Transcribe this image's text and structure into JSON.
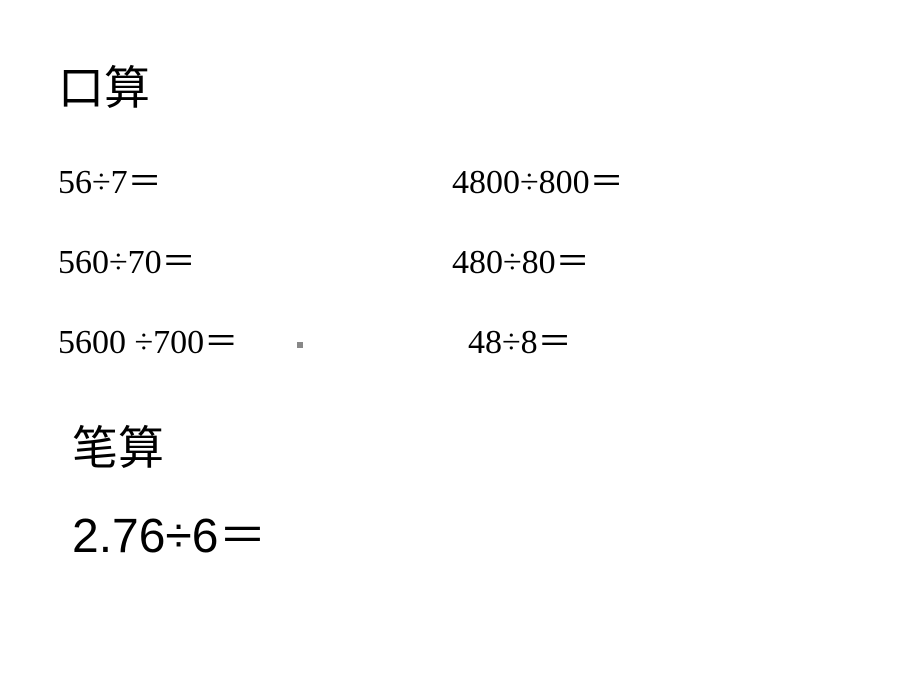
{
  "title1": "口算",
  "left": {
    "r1": "56÷7＝",
    "r2": "560÷70＝",
    "r3": "5600 ÷700＝"
  },
  "right": {
    "r1": "4800÷800＝",
    "r2": "480÷80＝",
    "r3": "48÷8＝"
  },
  "title2": "笔算",
  "bigexpr": "2.76÷6＝",
  "style": {
    "background_color": "#ffffff",
    "text_color": "#000000",
    "title_fontsize_pt": 34,
    "body_fontsize_pt": 26,
    "bigexpr_fontsize_pt": 36,
    "body_font": "serif",
    "bigexpr_font": "sans-serif"
  }
}
